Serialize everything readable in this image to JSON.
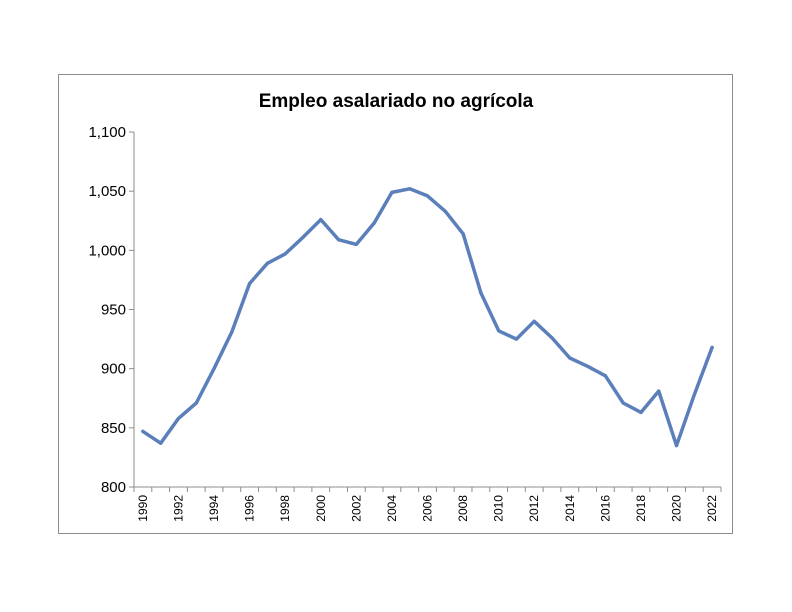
{
  "chart_data": {
    "type": "line",
    "title": "Empleo asalariado no agrícola",
    "xlabel": "",
    "ylabel": "",
    "ylim": [
      800,
      1100
    ],
    "yticks": [
      "800",
      "850",
      "900",
      "950",
      "1,000",
      "1,050",
      "1,100"
    ],
    "xtick_labels": [
      "1990",
      "1992",
      "1994",
      "1996",
      "1998",
      "2000",
      "2002",
      "2004",
      "2006",
      "2008",
      "2010",
      "2012",
      "2014",
      "2016",
      "2018",
      "2020",
      "2022"
    ],
    "grid": false,
    "legend": "none",
    "line_color": "#5b7fba",
    "x": [
      1990,
      1991,
      1992,
      1993,
      1994,
      1995,
      1996,
      1997,
      1998,
      1999,
      2000,
      2001,
      2002,
      2003,
      2004,
      2005,
      2006,
      2007,
      2008,
      2009,
      2010,
      2011,
      2012,
      2013,
      2014,
      2015,
      2016,
      2017,
      2018,
      2019,
      2020,
      2021,
      2022
    ],
    "series": [
      {
        "values": [
          847,
          837,
          858,
          871,
          900,
          931,
          972,
          989,
          997,
          1011,
          1026,
          1009,
          1005,
          1023,
          1049,
          1052,
          1046,
          1033,
          1014,
          964,
          932,
          925,
          940,
          926,
          909,
          902,
          894,
          871,
          863,
          881,
          835,
          878,
          918
        ]
      }
    ]
  }
}
